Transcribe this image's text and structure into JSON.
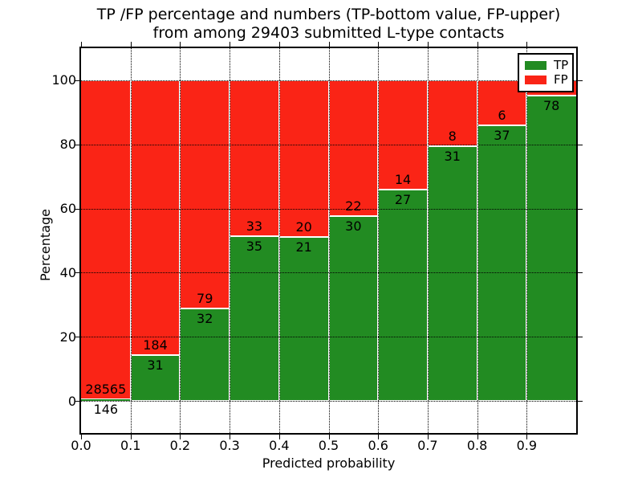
{
  "figure": {
    "title_line1": "TP /FP percentage and numbers (TP-bottom value, FP-upper)",
    "title_line2": "from among 29403 submitted L-type contacts"
  },
  "axes": {
    "xlabel": "Predicted probability",
    "ylabel": "Percentage",
    "x_tick_labels": [
      "0.0",
      "0.1",
      "0.2",
      "0.3",
      "0.4",
      "0.5",
      "0.6",
      "0.7",
      "0.8",
      "0.9"
    ],
    "y_tick_labels": [
      "0",
      "20",
      "40",
      "60",
      "80",
      "100"
    ],
    "y_tick_values": [
      0,
      20,
      40,
      60,
      80,
      100
    ],
    "xlim": [
      0.0,
      1.0
    ],
    "ylim": [
      -10,
      110
    ],
    "grid_style": "dotted"
  },
  "legend": {
    "position": "upper-right",
    "items": [
      {
        "label": "TP",
        "color": "#228b22"
      },
      {
        "label": "FP",
        "color": "#fa2416"
      }
    ]
  },
  "chart_data": {
    "type": "bar",
    "subtype": "stacked-percentage-histogram",
    "title": "TP /FP percentage and numbers (TP-bottom value, FP-upper) from among 29403 submitted L-type contacts",
    "xlabel": "Predicted probability",
    "ylabel": "Percentage",
    "total_submitted": 29403,
    "bin_starts": [
      0.0,
      0.1,
      0.2,
      0.3,
      0.4,
      0.5,
      0.6,
      0.7,
      0.8,
      0.9
    ],
    "bin_width": 0.1,
    "series": [
      {
        "name": "TP",
        "color": "#228b22",
        "counts": [
          146,
          31,
          32,
          35,
          21,
          30,
          27,
          31,
          37,
          78
        ],
        "pct": [
          0.51,
          14.42,
          28.83,
          51.47,
          51.22,
          57.69,
          65.85,
          79.49,
          86.05,
          95.12
        ]
      },
      {
        "name": "FP",
        "color": "#fa2416",
        "counts": [
          28565,
          184,
          79,
          33,
          20,
          22,
          14,
          8,
          6,
          null
        ],
        "pct": [
          99.49,
          85.58,
          71.17,
          48.53,
          48.78,
          42.31,
          34.15,
          20.51,
          13.95,
          4.88
        ]
      }
    ],
    "bar_value_labels": {
      "tp": [
        "146",
        "31",
        "32",
        "35",
        "21",
        "30",
        "27",
        "31",
        "37",
        "78"
      ],
      "fp": [
        "28565",
        "184",
        "79",
        "33",
        "20",
        "22",
        "14",
        "8",
        "6",
        ""
      ]
    }
  }
}
